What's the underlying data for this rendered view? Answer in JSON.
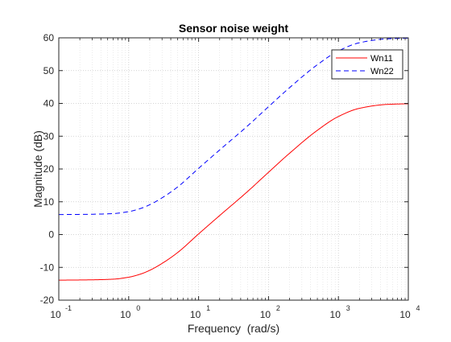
{
  "chart_data": {
    "type": "line",
    "title": "Sensor noise weight",
    "xlabel": "Frequency  (rad/s)",
    "ylabel": "Magnitude (dB)",
    "xscale": "log",
    "xlim": [
      0.1,
      10000
    ],
    "ylim": [
      -20,
      60
    ],
    "grid": "major and minor",
    "legend_position": "top-right",
    "xticks": [
      {
        "value": 0.1,
        "base": "10",
        "exp": "-1"
      },
      {
        "value": 1,
        "base": "10",
        "exp": "0"
      },
      {
        "value": 10,
        "base": "10",
        "exp": "1"
      },
      {
        "value": 100,
        "base": "10",
        "exp": "2"
      },
      {
        "value": 1000,
        "base": "10",
        "exp": "3"
      },
      {
        "value": 10000,
        "base": "10",
        "exp": "4"
      }
    ],
    "yticks": [
      {
        "value": -20,
        "label": "-20"
      },
      {
        "value": -10,
        "label": "-10"
      },
      {
        "value": 0,
        "label": "0"
      },
      {
        "value": 10,
        "label": "10"
      },
      {
        "value": 20,
        "label": "20"
      },
      {
        "value": 30,
        "label": "30"
      },
      {
        "value": 40,
        "label": "40"
      },
      {
        "value": 50,
        "label": "50"
      },
      {
        "value": 60,
        "label": "60"
      }
    ],
    "series": [
      {
        "name": "Wn11",
        "color": "#ff0000",
        "dash": "solid",
        "x": [
          0.1,
          0.3,
          0.6,
          1,
          1.5,
          2,
          3,
          5,
          10,
          20,
          50,
          100,
          200,
          500,
          1000,
          2000,
          5000,
          10000
        ],
        "y": [
          -13.9,
          -13.8,
          -13.6,
          -13.0,
          -12.0,
          -10.9,
          -8.8,
          -5.5,
          0.2,
          5.8,
          13.1,
          19.0,
          24.8,
          31.8,
          36.0,
          38.5,
          39.7,
          39.9
        ]
      },
      {
        "name": "Wn22",
        "color": "#0000ff",
        "dash": "dashed",
        "x": [
          0.1,
          0.3,
          0.6,
          1,
          1.5,
          2,
          3,
          5,
          10,
          20,
          50,
          100,
          200,
          500,
          1000,
          2000,
          5000,
          10000
        ],
        "y": [
          6.1,
          6.2,
          6.4,
          7.0,
          8.0,
          9.1,
          11.2,
          14.5,
          20.2,
          25.8,
          33.1,
          39.0,
          44.8,
          51.8,
          56.0,
          58.5,
          59.7,
          59.9
        ]
      }
    ]
  }
}
